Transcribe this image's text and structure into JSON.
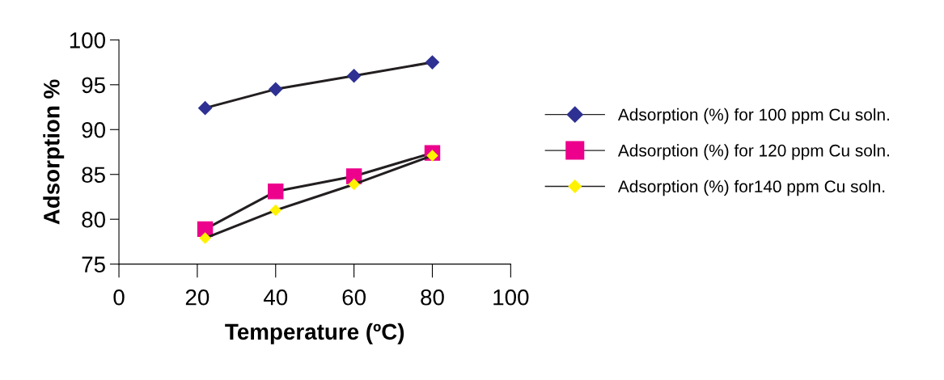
{
  "chart_data": {
    "type": "line",
    "xlabel": "Temperature (ºC)",
    "ylabel": "Adsorption %",
    "xlim": [
      0,
      100
    ],
    "xticks": [
      0,
      20,
      40,
      60,
      80,
      100
    ],
    "ylim": [
      75,
      100
    ],
    "yticks": [
      75,
      80,
      85,
      90,
      95,
      100
    ],
    "grid": false,
    "legend": "right",
    "line_style": "solid",
    "series": [
      {
        "name": "Adsorption (%) for 100 ppm Cu soln.",
        "color": "#2e3192",
        "marker": "diamond",
        "x": [
          22,
          40,
          60,
          80
        ],
        "values": [
          92.4,
          94.5,
          96.0,
          97.5
        ]
      },
      {
        "name": "Adsorption (%) for 120 ppm Cu soln.",
        "color": "#ec008c",
        "marker": "square",
        "x": [
          22,
          40,
          60,
          80
        ],
        "values": [
          78.9,
          83.1,
          84.8,
          87.4
        ]
      },
      {
        "name": "Adsorption (%) for140 ppm Cu soln.",
        "color": "#fff200",
        "marker": "diamond",
        "x": [
          22,
          40,
          60,
          80
        ],
        "values": [
          77.9,
          81.0,
          83.9,
          87.1
        ]
      }
    ]
  }
}
